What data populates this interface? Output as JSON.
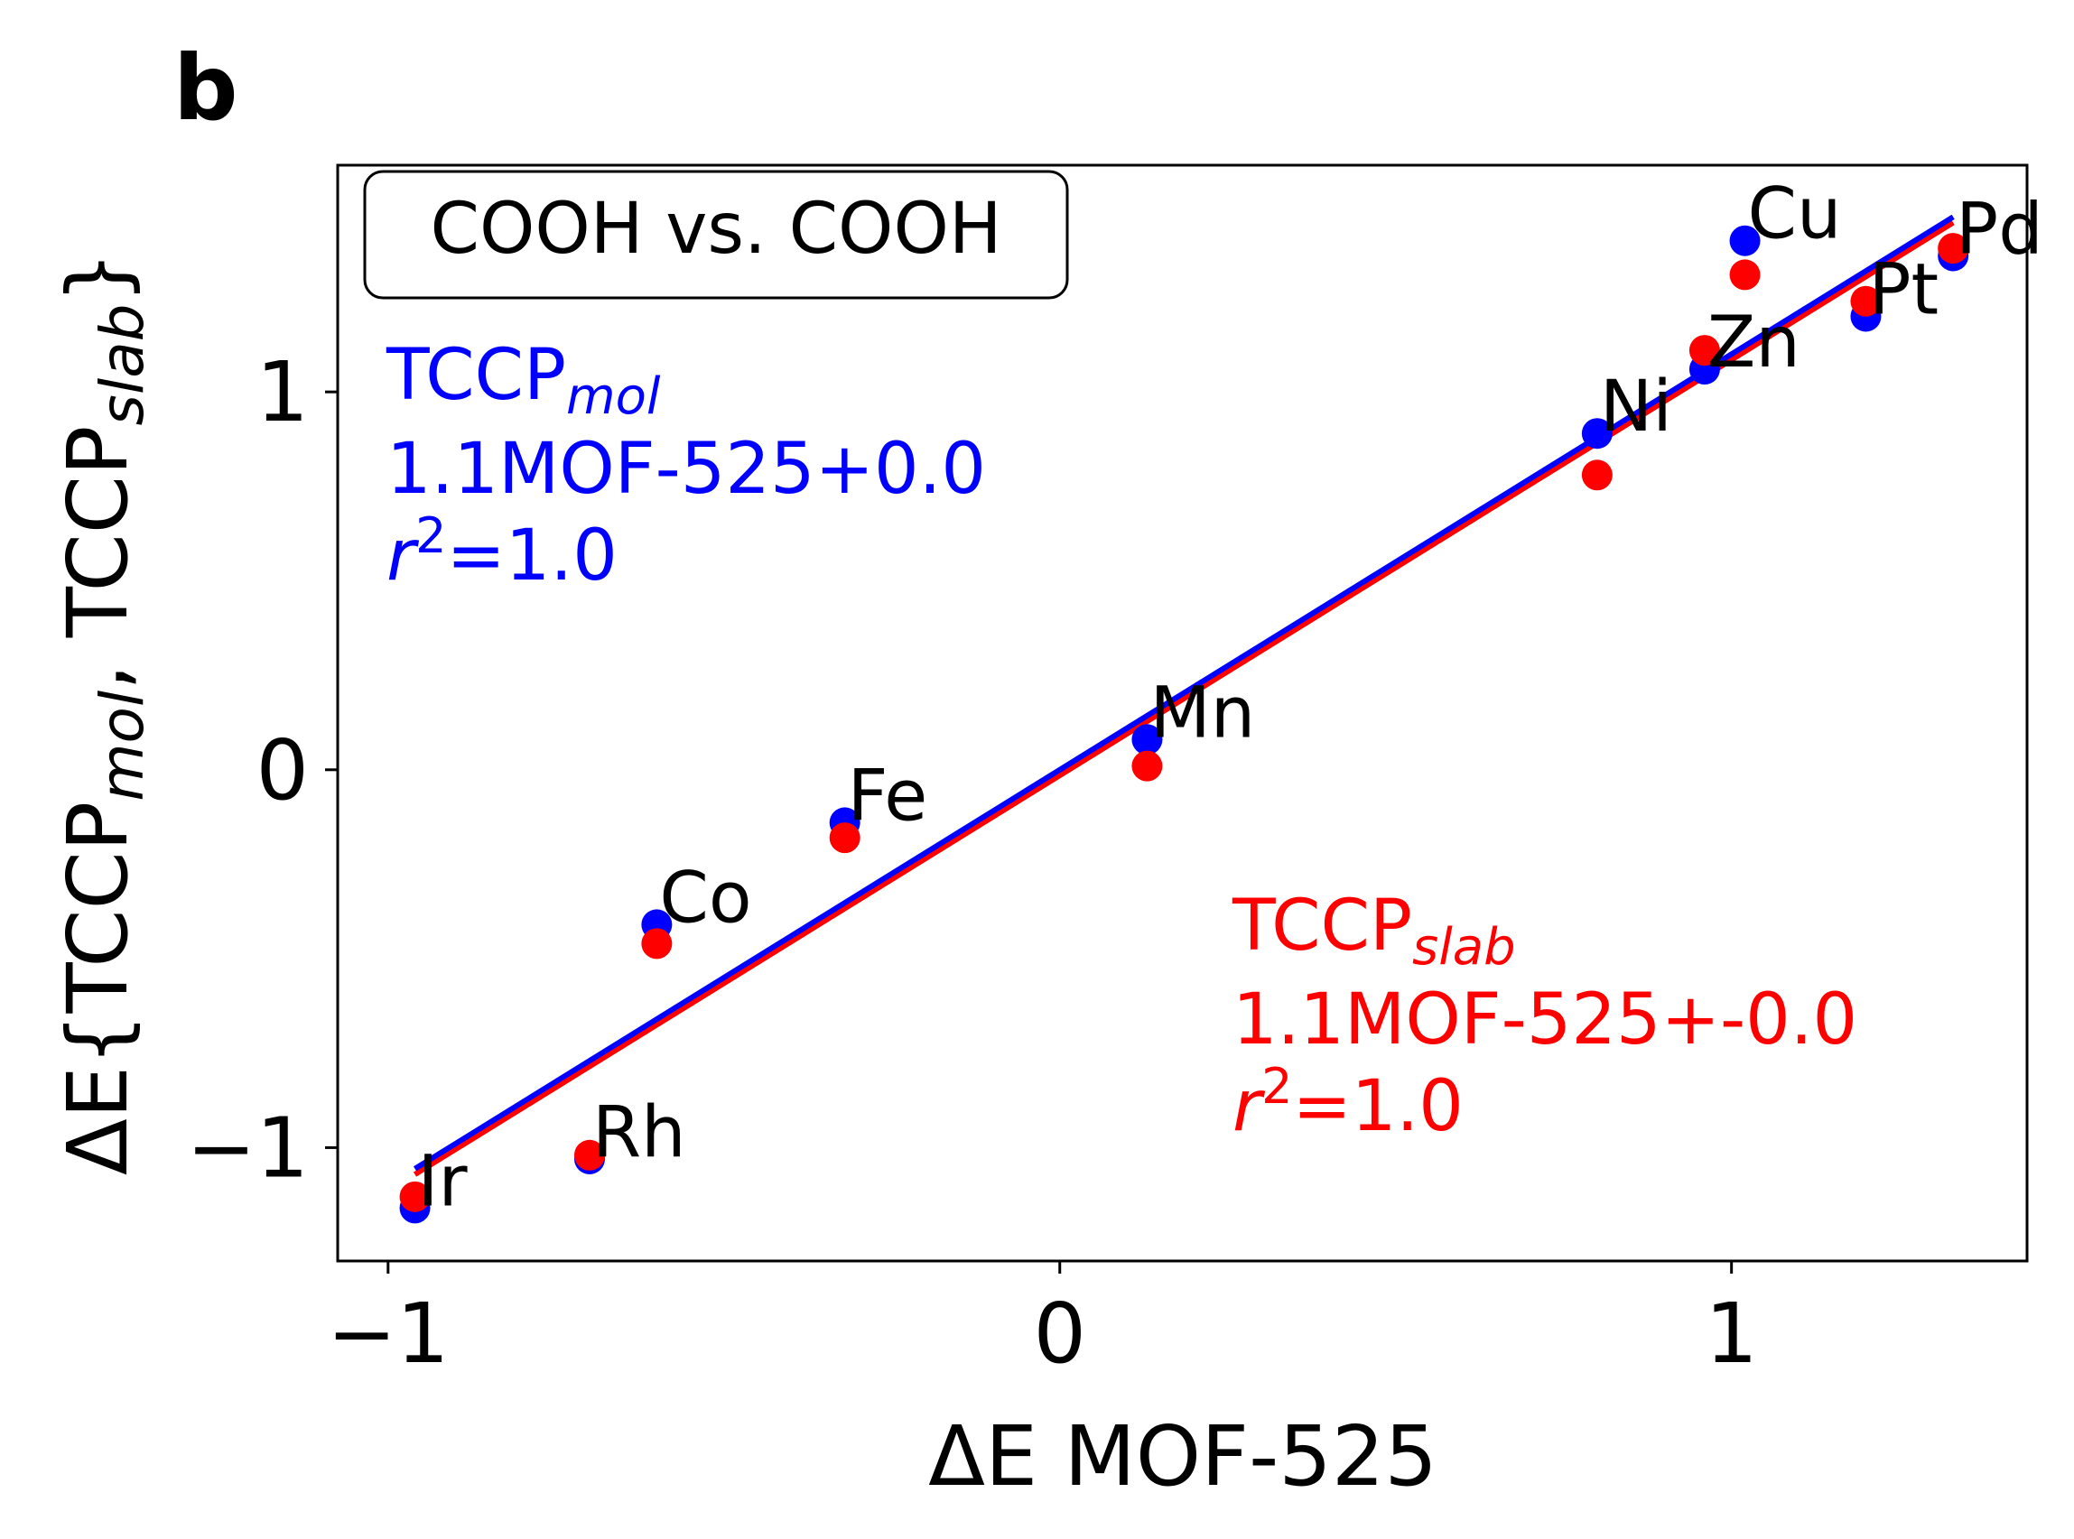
{
  "panel_label": "b",
  "chart_data": {
    "type": "scatter",
    "xlabel": "ΔE MOF-525",
    "ylabel": {
      "prefix": "ΔE{TCCP",
      "sub1": "mol",
      "middle": ", TCCP",
      "sub2": "slab",
      "suffix": "}"
    },
    "xlim": [
      -1.075,
      1.44
    ],
    "ylim": [
      -1.3,
      1.6
    ],
    "xticks": [
      {
        "value": -1,
        "label": "−1"
      },
      {
        "value": 0,
        "label": "0"
      },
      {
        "value": 1,
        "label": "1"
      }
    ],
    "yticks": [
      {
        "value": -1,
        "label": "−1"
      },
      {
        "value": 0,
        "label": "0"
      },
      {
        "value": 1,
        "label": "1"
      }
    ],
    "box_label": "COOH vs. COOH",
    "colors": {
      "mol": "#0000ff",
      "slab": "#ff0000"
    },
    "labels": [
      "Ir",
      "Rh",
      "Co",
      "Fe",
      "Mn",
      "Ni",
      "Zn",
      "Cu",
      "Pt",
      "Pd"
    ],
    "x": [
      -0.96,
      -0.7,
      -0.6,
      -0.32,
      0.13,
      0.8,
      0.96,
      1.02,
      1.2,
      1.33
    ],
    "series": [
      {
        "key": "mol",
        "name": "TCCP",
        "name_sub": "mol",
        "fit_equation": "1.1MOF-525+0.0",
        "r2_prefix": "r",
        "r2_sup": "2",
        "r2_value": "=1.0",
        "values": [
          -1.16,
          -1.03,
          -0.41,
          -0.14,
          0.08,
          0.89,
          1.06,
          1.4,
          1.2,
          1.36
        ],
        "fit": {
          "slope": 1.1,
          "intercept": 0.0
        }
      },
      {
        "key": "slab",
        "name": "TCCP",
        "name_sub": "slab",
        "fit_equation": "1.1MOF-525+-0.0",
        "r2_prefix": "r",
        "r2_sup": "2",
        "r2_value": "=1.0",
        "values": [
          -1.13,
          -1.02,
          -0.46,
          -0.18,
          0.01,
          0.78,
          1.11,
          1.31,
          1.24,
          1.38
        ],
        "fit": {
          "slope": 1.1,
          "intercept": -0.015
        }
      }
    ]
  }
}
